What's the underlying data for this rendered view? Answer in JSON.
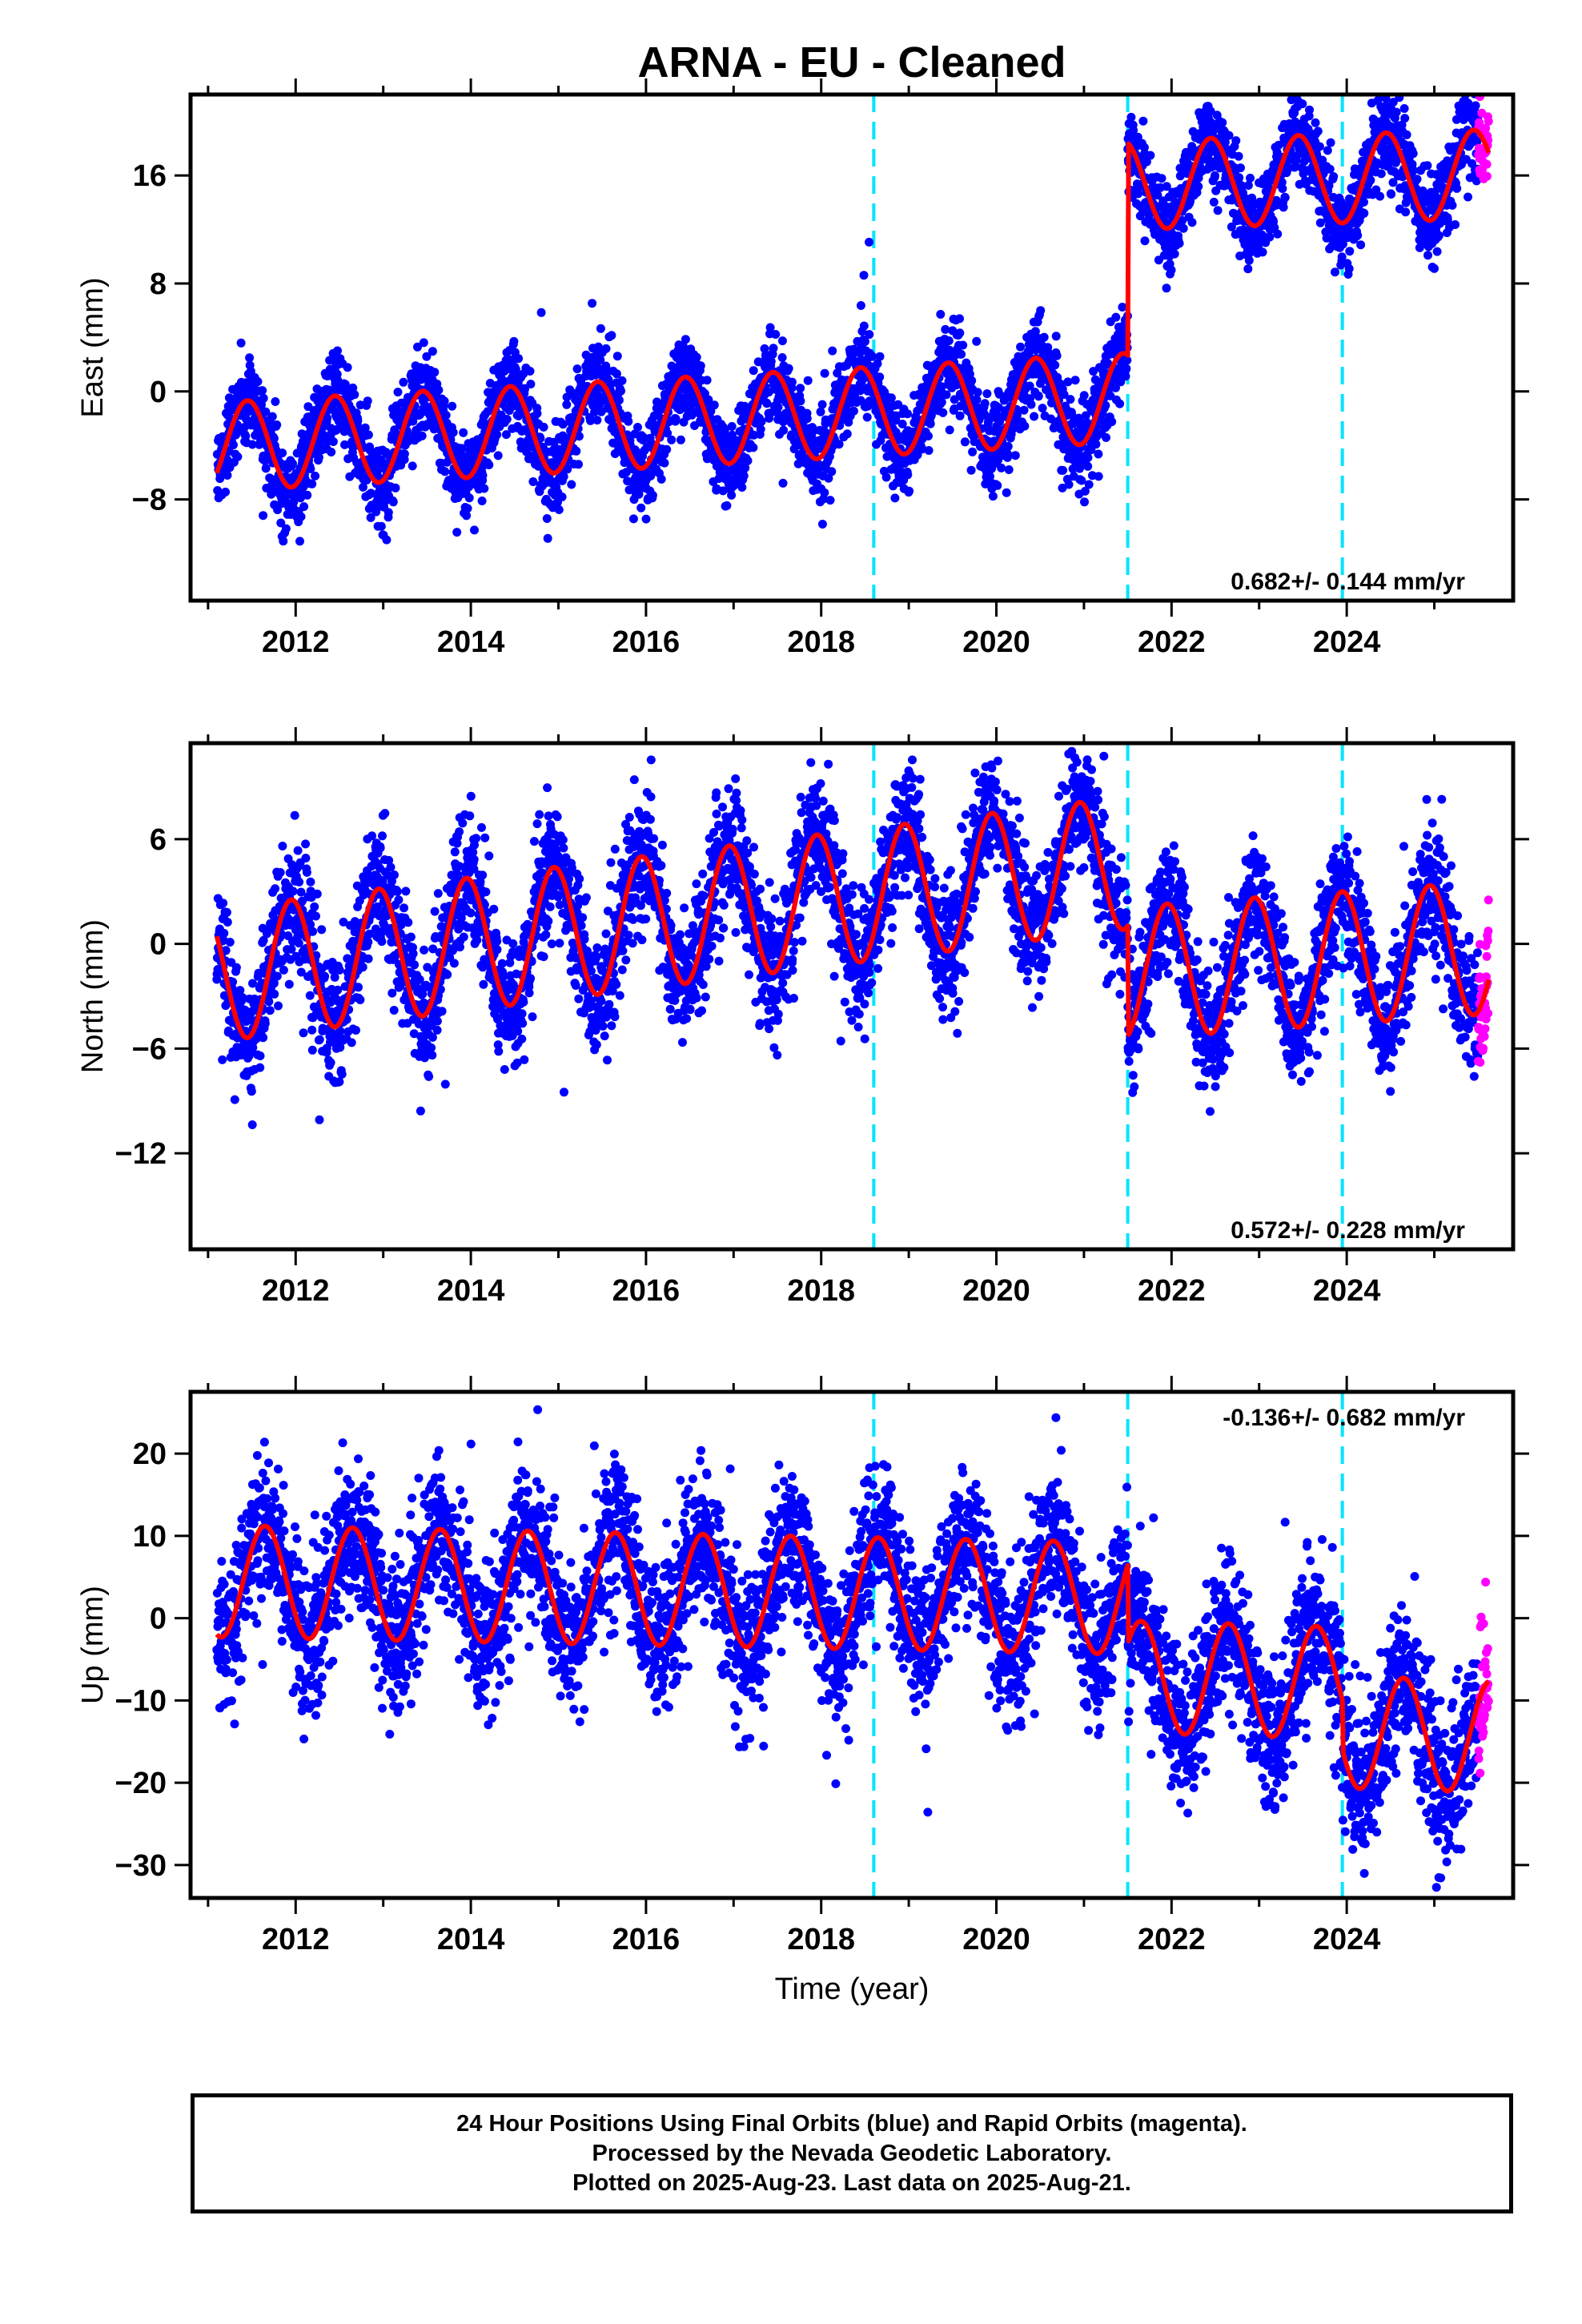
{
  "title": "ARNA  - EU - Cleaned",
  "colors": {
    "final_orbits": "#0000ff",
    "rapid_orbits": "#ff00ff",
    "model_fit": "#ff0000",
    "offset_lines": "#00e5ff"
  },
  "chart_data": [
    {
      "type": "scatter",
      "ylabel": "East (mm)",
      "xlabel": "",
      "xlim": [
        2010.8,
        2025.9
      ],
      "ylim": [
        -15.5,
        22
      ],
      "xticks": [
        2012,
        2014,
        2016,
        2018,
        2020,
        2022,
        2024
      ],
      "xtick_labels": [
        "2012",
        "2014",
        "2016",
        "2018",
        "2020",
        "2022",
        "2024"
      ],
      "yticks": [
        -8,
        0,
        8,
        16
      ],
      "ytick_labels": [
        "−8",
        "0",
        "8",
        "16"
      ],
      "rate": "0.682+/- 0.144 mm/yr",
      "rate_position": "bottom-right",
      "offsets": [
        2018.6,
        2021.5,
        2023.95
      ],
      "start": 2011.1,
      "end": 2025.62,
      "rapid_start": 2025.5,
      "model": {
        "segments": [
          {
            "start": 2011.1,
            "end": 2021.5,
            "offset": -4.1,
            "trend": 0.35
          },
          {
            "start": 2021.5,
            "end": 2025.62,
            "offset": 13.2,
            "trend": 0.2
          }
        ],
        "amplitude": 3.3,
        "phase_peak": 0.45,
        "ref_year": 2011.1
      },
      "noise": 1.6,
      "series": [
        {
          "name": "Final Orbits",
          "color": "#0000ff"
        },
        {
          "name": "Rapid Orbits",
          "color": "#ff00ff"
        },
        {
          "name": "Model",
          "color": "#ff0000"
        }
      ]
    },
    {
      "type": "scatter",
      "ylabel": "North (mm)",
      "xlabel": "",
      "xlim": [
        2010.8,
        2025.9
      ],
      "ylim": [
        -17.5,
        11.5
      ],
      "xticks": [
        2012,
        2014,
        2016,
        2018,
        2020,
        2022,
        2024
      ],
      "xtick_labels": [
        "2012",
        "2014",
        "2016",
        "2018",
        "2020",
        "2022",
        "2024"
      ],
      "yticks": [
        -12,
        -6,
        0,
        6
      ],
      "ytick_labels": [
        "−12",
        "−6",
        "0",
        "6"
      ],
      "rate": "0.572+/- 0.228 mm/yr",
      "rate_position": "bottom-right",
      "offsets": [
        2018.6,
        2021.5,
        2023.95
      ],
      "start": 2011.1,
      "end": 2025.62,
      "rapid_start": 2025.5,
      "model": {
        "segments": [
          {
            "start": 2011.1,
            "end": 2021.5,
            "offset": -1.8,
            "trend": 0.62
          },
          {
            "start": 2021.5,
            "end": 2025.62,
            "offset": -5.3,
            "trend": 0.35
          }
        ],
        "amplitude": 3.8,
        "phase_peak": 0.95,
        "ref_year": 2011.1
      },
      "noise": 1.8,
      "series": [
        {
          "name": "Final Orbits",
          "color": "#0000ff"
        },
        {
          "name": "Rapid Orbits",
          "color": "#ff00ff"
        },
        {
          "name": "Model",
          "color": "#ff0000"
        }
      ]
    },
    {
      "type": "scatter",
      "ylabel": "Up (mm)",
      "xlabel": "Time (year)",
      "xlim": [
        2010.8,
        2025.9
      ],
      "ylim": [
        -34,
        27.5
      ],
      "xticks": [
        2012,
        2014,
        2016,
        2018,
        2020,
        2022,
        2024
      ],
      "xtick_labels": [
        "2012",
        "2014",
        "2016",
        "2018",
        "2020",
        "2022",
        "2024"
      ],
      "yticks": [
        -30,
        -20,
        -10,
        0,
        10,
        20
      ],
      "ytick_labels": [
        "−30",
        "−20",
        "−10",
        "0",
        "10",
        "20"
      ],
      "rate": "-0.136+/- 0.682 mm/yr",
      "rate_position": "top-right",
      "offsets": [
        2018.6,
        2021.5,
        2023.95
      ],
      "start": 2011.1,
      "end": 2025.62,
      "rapid_start": 2025.5,
      "model": {
        "segments": [
          {
            "start": 2011.1,
            "end": 2021.5,
            "offset": 4.5,
            "trend": -0.2
          },
          {
            "start": 2021.5,
            "end": 2023.95,
            "offset": -4.0,
            "trend": -0.3
          },
          {
            "start": 2023.95,
            "end": 2025.62,
            "offset": -10.0,
            "trend": -0.3
          }
        ],
        "amplitude": 6.8,
        "phase_peak": 0.65,
        "ref_year": 2011.1
      },
      "noise": 4.5,
      "series": [
        {
          "name": "Final Orbits",
          "color": "#0000ff"
        },
        {
          "name": "Rapid Orbits",
          "color": "#ff00ff"
        },
        {
          "name": "Model",
          "color": "#ff0000"
        }
      ]
    }
  ],
  "footer": {
    "line1": "24 Hour Positions Using Final Orbits (blue) and Rapid Orbits (magenta).",
    "line2": "Processed by the Nevada Geodetic Laboratory.",
    "line3": "Plotted on 2025-Aug-23. Last data on 2025-Aug-21."
  }
}
